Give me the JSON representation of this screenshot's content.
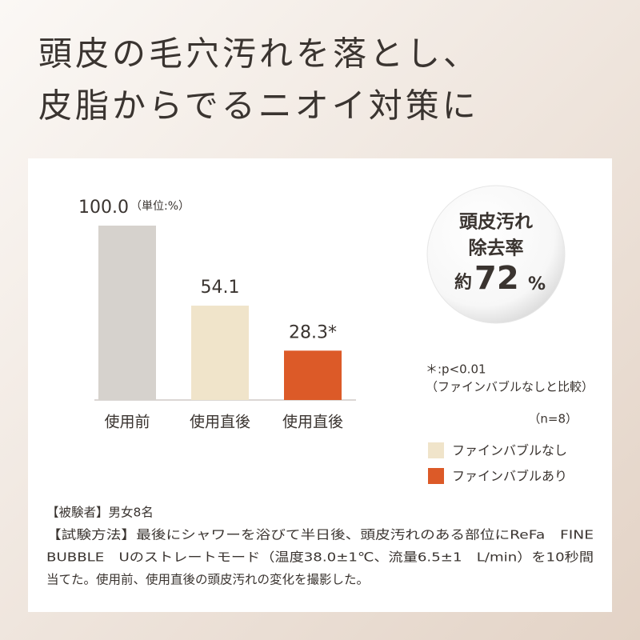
{
  "header": {
    "title_lines": [
      "頭皮の毛穴汚れを落とし、",
      "皮脂からでるニオイ対策に"
    ]
  },
  "chart_data": {
    "type": "bar",
    "unit_label": "（単位:%）",
    "categories": [
      "使用前",
      "使用直後",
      "使用直後"
    ],
    "values": [
      100.0,
      54.1,
      28.3
    ],
    "value_labels": [
      "100.0",
      "54.1",
      "28.3*"
    ],
    "colors": [
      "#d6d2cd",
      "#f0e4ca",
      "#dc5a28"
    ],
    "note_lines": [
      "＊:p<0.01",
      "（ファインバブルなしと比較）"
    ],
    "sample_size": "（n=8）",
    "legend": [
      {
        "name": "ファインバブルなし",
        "color": "#f0e4ca"
      },
      {
        "name": "ファインバブルあり",
        "color": "#dc5a28"
      }
    ]
  },
  "badge": {
    "lines": [
      "頭皮汚れ",
      "除去率"
    ],
    "prefix": "約",
    "number": "72",
    "unit": "%"
  },
  "footer": {
    "lines": [
      "【被験者】男女8名",
      "【試験方法】最後にシャワーを浴びて半日後、頭皮汚れのある部位にReFa　FINE",
      "BUBBLE　Uのストレートモード（温度38.0±1℃、流量6.5±1　L/min）を10秒間",
      "当てた。使用前、使用直後の頭皮汚れの変化を撮影した。"
    ]
  }
}
